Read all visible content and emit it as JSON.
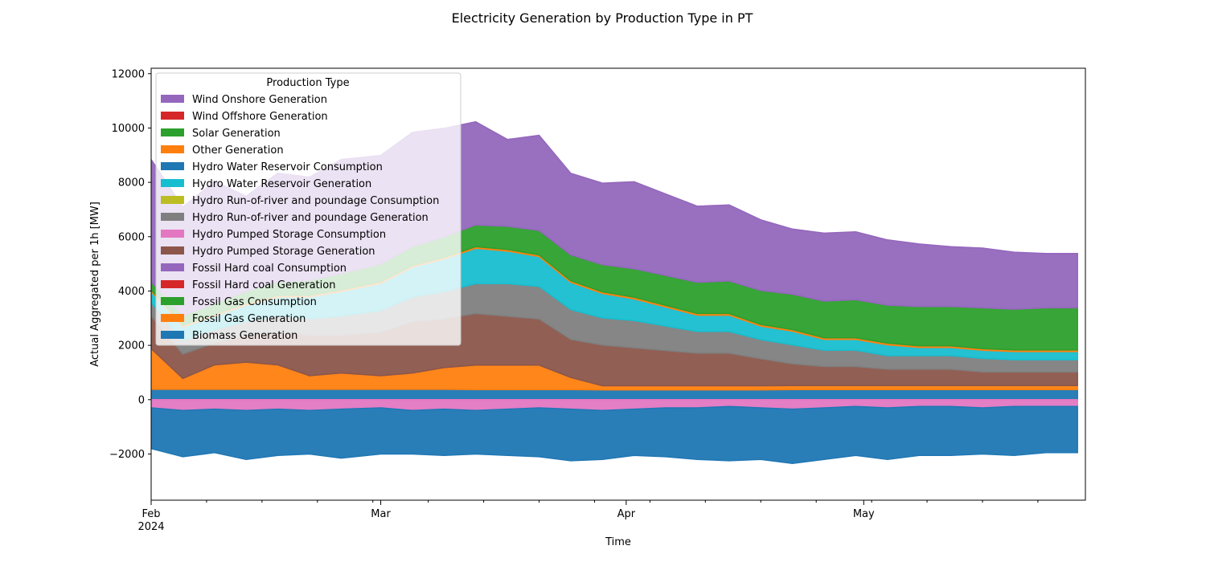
{
  "chart_data": {
    "type": "area",
    "title": "Electricity Generation by Production Type in PT",
    "xlabel": "Time",
    "ylabel": "Actual Aggregated per 1h [MW]",
    "ylim": [
      -3700,
      12200
    ],
    "yticks": [
      -2000,
      0,
      2000,
      4000,
      6000,
      8000,
      10000,
      12000
    ],
    "ytick_labels": [
      "−2000",
      "0",
      "2000",
      "4000",
      "6000",
      "8000",
      "10000",
      "12000"
    ],
    "xlim": [
      "2024-02-01",
      "2024-05-29"
    ],
    "xticks": [
      {
        "date": "2024-02-01",
        "label": "Feb",
        "sublabel": "2024"
      },
      {
        "date": "2024-03-01",
        "label": "Mar",
        "sublabel": ""
      },
      {
        "date": "2024-04-01",
        "label": "Apr",
        "sublabel": ""
      },
      {
        "date": "2024-05-01",
        "label": "May",
        "sublabel": ""
      }
    ],
    "grid": false,
    "legend": {
      "title": "Production Type",
      "placement": "upper left"
    },
    "day_marks": [
      "2024-02-01",
      "2024-02-08",
      "2024-02-15",
      "2024-02-22",
      "2024-02-29",
      "2024-03-07",
      "2024-03-14",
      "2024-03-21",
      "2024-03-28",
      "2024-04-04",
      "2024-04-11",
      "2024-04-18",
      "2024-04-25",
      "2024-05-02",
      "2024-05-09",
      "2024-05-16",
      "2024-05-23"
    ],
    "x": [
      "2024-02-01",
      "2024-02-05",
      "2024-02-09",
      "2024-02-13",
      "2024-02-17",
      "2024-02-21",
      "2024-02-25",
      "2024-03-01",
      "2024-03-05",
      "2024-03-09",
      "2024-03-13",
      "2024-03-17",
      "2024-03-21",
      "2024-03-25",
      "2024-03-29",
      "2024-04-02",
      "2024-04-06",
      "2024-04-10",
      "2024-04-14",
      "2024-04-18",
      "2024-04-22",
      "2024-04-26",
      "2024-04-30",
      "2024-05-04",
      "2024-05-08",
      "2024-05-12",
      "2024-05-16",
      "2024-05-20",
      "2024-05-24",
      "2024-05-28"
    ],
    "series": [
      {
        "name": "Biomass Generation",
        "color": "#1f77b4",
        "values": [
          380,
          380,
          380,
          380,
          380,
          380,
          380,
          380,
          380,
          380,
          370,
          370,
          370,
          370,
          360,
          360,
          360,
          360,
          360,
          360,
          370,
          370,
          370,
          370,
          370,
          370,
          370,
          370,
          370,
          370
        ]
      },
      {
        "name": "Fossil Gas Generation",
        "color": "#ff7f0e",
        "values": [
          1500,
          400,
          900,
          1000,
          900,
          500,
          600,
          500,
          600,
          800,
          900,
          900,
          900,
          450,
          150,
          150,
          150,
          150,
          150,
          150,
          150,
          150,
          150,
          150,
          150,
          150,
          150,
          150,
          150,
          150
        ]
      },
      {
        "name": "Fossil Gas Consumption",
        "color": "#2ca02c",
        "values": [
          0,
          0,
          0,
          0,
          0,
          0,
          0,
          0,
          0,
          0,
          0,
          0,
          0,
          0,
          0,
          0,
          0,
          0,
          0,
          0,
          0,
          0,
          0,
          0,
          0,
          0,
          0,
          0,
          0,
          0
        ]
      },
      {
        "name": "Fossil Hard coal Generation",
        "color": "#d62728",
        "values": [
          0,
          0,
          0,
          0,
          0,
          0,
          0,
          0,
          0,
          0,
          0,
          0,
          0,
          0,
          0,
          0,
          0,
          0,
          0,
          0,
          0,
          0,
          0,
          0,
          0,
          0,
          0,
          0,
          0,
          0
        ]
      },
      {
        "name": "Fossil Hard coal Consumption",
        "color": "#9467bd",
        "values": [
          0,
          0,
          0,
          0,
          0,
          0,
          0,
          0,
          0,
          0,
          0,
          0,
          0,
          0,
          0,
          0,
          0,
          0,
          0,
          0,
          0,
          0,
          0,
          0,
          0,
          0,
          0,
          0,
          0,
          0
        ]
      },
      {
        "name": "Hydro Pumped Storage Generation",
        "color": "#8c564b",
        "values": [
          1200,
          900,
          800,
          1000,
          1200,
          1500,
          1400,
          1600,
          1900,
          1800,
          1900,
          1800,
          1700,
          1400,
          1500,
          1400,
          1300,
          1200,
          1200,
          1000,
          800,
          700,
          700,
          600,
          600,
          600,
          500,
          500,
          500,
          500
        ]
      },
      {
        "name": "Hydro Pumped Storage Consumption",
        "color": "#e377c2",
        "values": [
          -300,
          -400,
          -350,
          -400,
          -350,
          -400,
          -350,
          -300,
          -400,
          -350,
          -400,
          -350,
          -300,
          -350,
          -400,
          -350,
          -300,
          -300,
          -250,
          -300,
          -350,
          -300,
          -250,
          -300,
          -250,
          -250,
          -300,
          -250,
          -250,
          -250
        ]
      },
      {
        "name": "Hydro Run-of-river and poundage Generation",
        "color": "#7f7f7f",
        "values": [
          500,
          500,
          500,
          500,
          600,
          600,
          700,
          800,
          900,
          1000,
          1100,
          1200,
          1200,
          1100,
          1000,
          1000,
          900,
          800,
          800,
          700,
          700,
          600,
          600,
          500,
          500,
          500,
          500,
          450,
          450,
          450
        ]
      },
      {
        "name": "Hydro Run-of-river and poundage Consumption",
        "color": "#bcbd22",
        "values": [
          0,
          0,
          0,
          0,
          0,
          0,
          0,
          0,
          0,
          0,
          0,
          0,
          0,
          0,
          0,
          0,
          0,
          0,
          0,
          0,
          0,
          0,
          0,
          0,
          0,
          0,
          0,
          0,
          0,
          0
        ]
      },
      {
        "name": "Hydro Water Reservoir Generation",
        "color": "#17becf",
        "values": [
          400,
          500,
          500,
          600,
          700,
          800,
          900,
          1000,
          1100,
          1200,
          1300,
          1200,
          1100,
          1000,
          900,
          800,
          700,
          600,
          600,
          500,
          500,
          400,
          400,
          400,
          300,
          300,
          300,
          300,
          300,
          300
        ]
      },
      {
        "name": "Hydro Water Reservoir Consumption",
        "color": "#1f77b4",
        "values": [
          -1500,
          -1700,
          -1600,
          -1800,
          -1700,
          -1600,
          -1800,
          -1700,
          -1600,
          -1700,
          -1600,
          -1700,
          -1800,
          -1900,
          -1800,
          -1700,
          -1800,
          -1900,
          -2000,
          -1900,
          -2000,
          -1900,
          -1800,
          -1900,
          -1800,
          -1800,
          -1700,
          -1800,
          -1700,
          -1700
        ]
      },
      {
        "name": "Other Generation",
        "color": "#ff7f0e",
        "values": [
          60,
          60,
          60,
          60,
          60,
          60,
          60,
          60,
          60,
          60,
          60,
          60,
          60,
          60,
          60,
          60,
          60,
          60,
          60,
          60,
          60,
          60,
          60,
          60,
          60,
          60,
          60,
          60,
          60,
          60
        ]
      },
      {
        "name": "Solar Generation",
        "color": "#2ca02c",
        "values": [
          300,
          350,
          400,
          450,
          500,
          550,
          600,
          650,
          700,
          750,
          800,
          850,
          900,
          950,
          1000,
          1050,
          1100,
          1150,
          1200,
          1250,
          1300,
          1350,
          1400,
          1400,
          1450,
          1450,
          1500,
          1500,
          1550,
          1550
        ]
      },
      {
        "name": "Wind Offshore Generation",
        "color": "#d62728",
        "values": [
          0,
          0,
          0,
          0,
          0,
          0,
          0,
          0,
          0,
          0,
          0,
          0,
          0,
          0,
          0,
          0,
          0,
          0,
          0,
          0,
          0,
          0,
          0,
          0,
          0,
          0,
          0,
          0,
          0,
          0
        ]
      },
      {
        "name": "Wind Onshore Generation",
        "color": "#9467bd",
        "values": [
          4500,
          4000,
          4500,
          3500,
          4000,
          3800,
          4200,
          4000,
          4200,
          4000,
          3800,
          3200,
          3500,
          3000,
          3000,
          3200,
          3000,
          2800,
          2800,
          2600,
          2400,
          2500,
          2500,
          2400,
          2300,
          2200,
          2200,
          2100,
          2000,
          2000
        ]
      }
    ]
  }
}
